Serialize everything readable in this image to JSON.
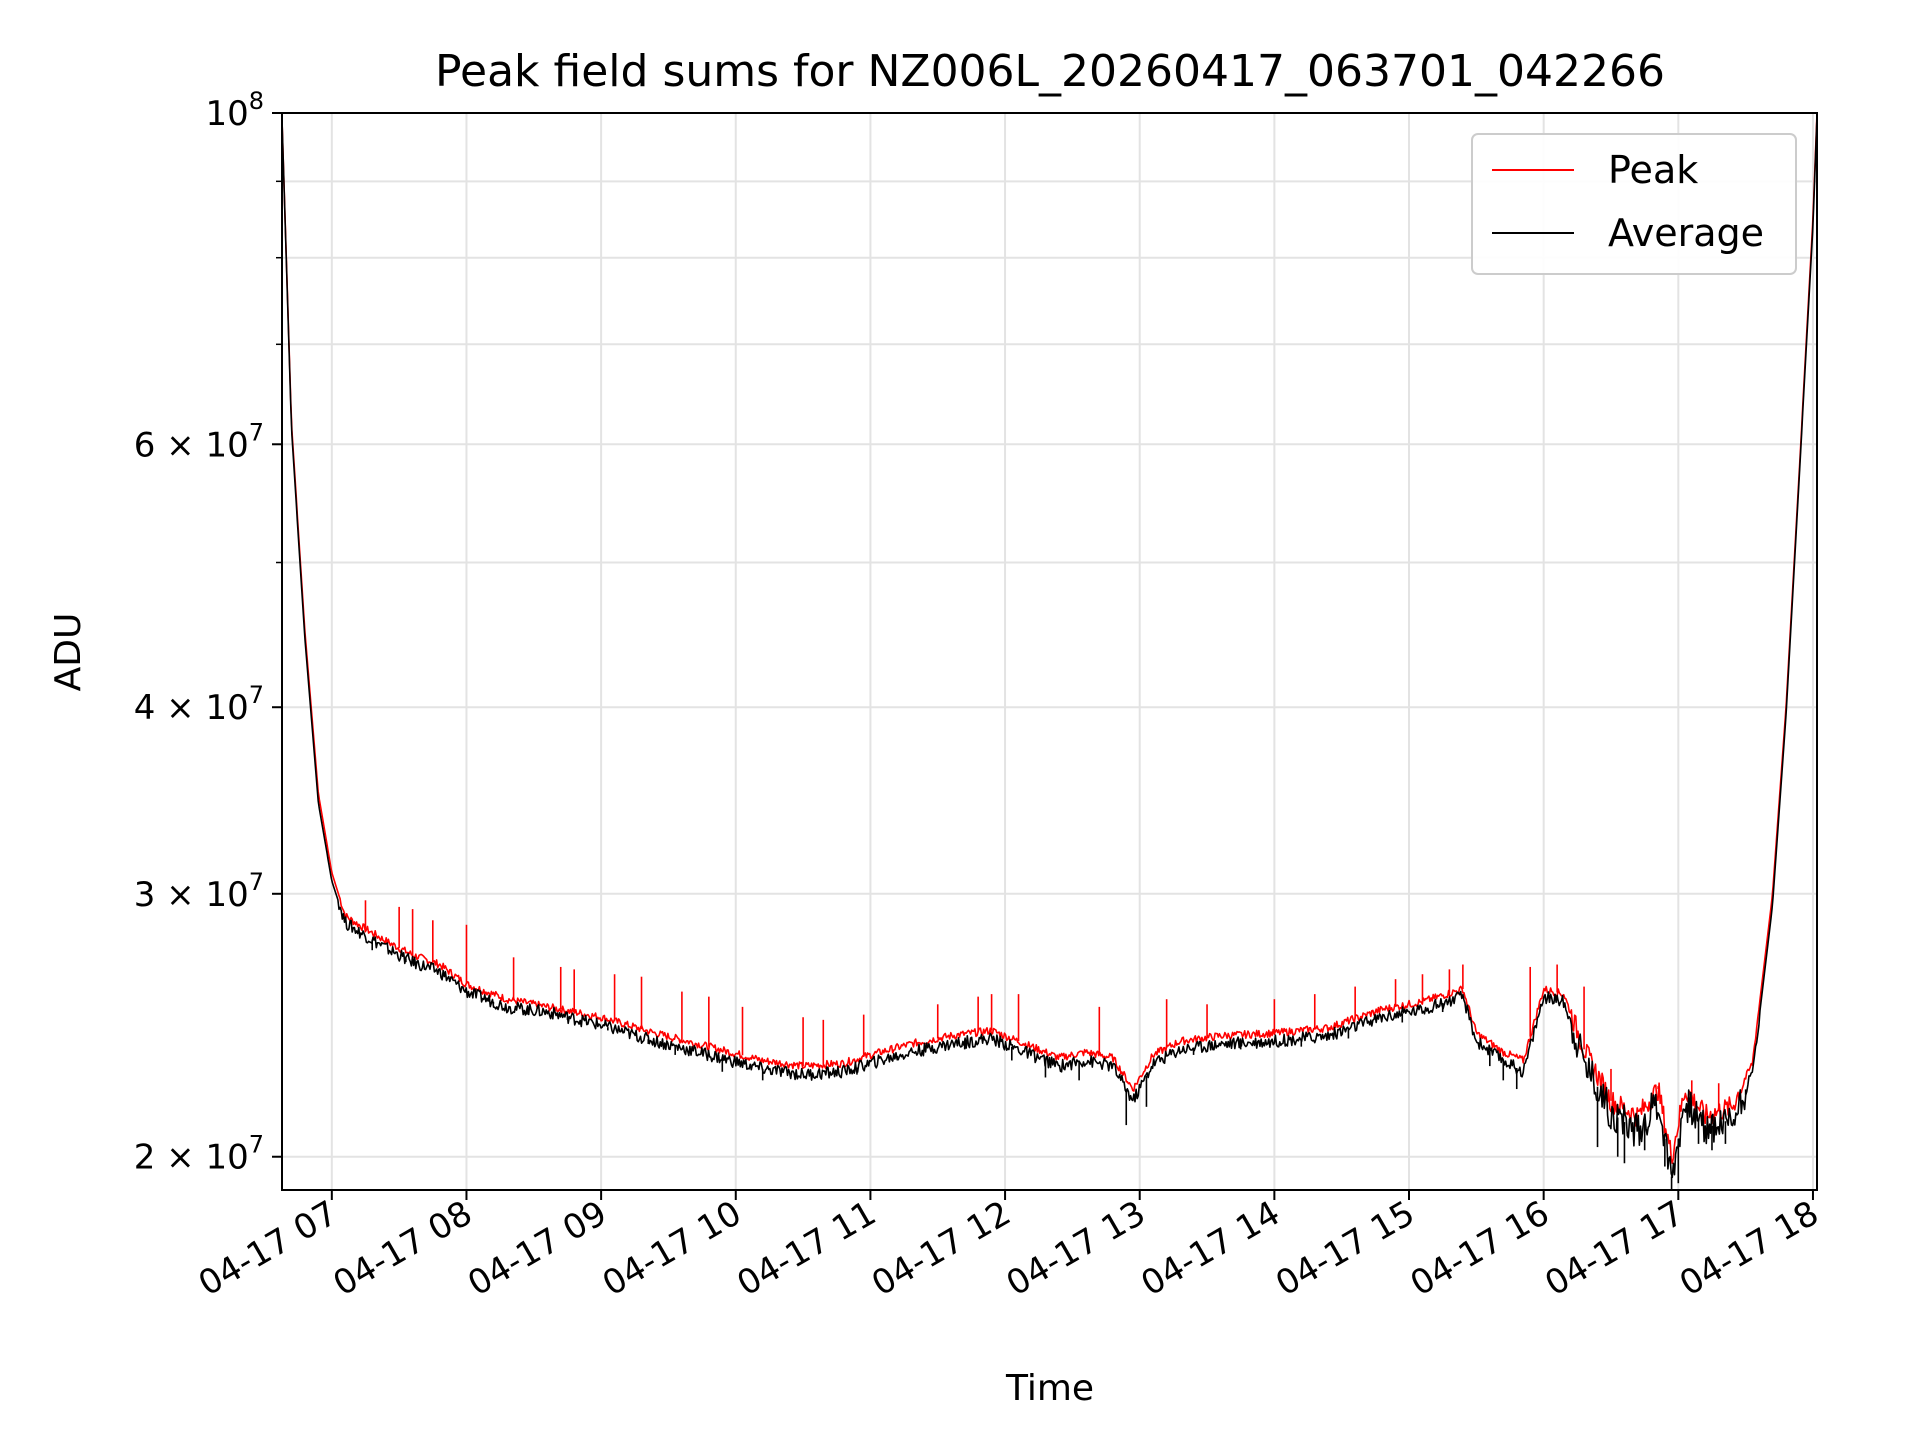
{
  "chart_data": {
    "type": "line",
    "title": "Peak field sums for NZ006L_20260417_063701_042266",
    "xlabel": "Time",
    "ylabel": "ADU",
    "yscale": "log",
    "ylim": [
      19000000,
      100000000
    ],
    "xlim": [
      6.63,
      18.03
    ],
    "grid": true,
    "legend_position": "top-right",
    "x_ticks": [
      {
        "value": 7,
        "label": "04-17 07"
      },
      {
        "value": 8,
        "label": "04-17 08"
      },
      {
        "value": 9,
        "label": "04-17 09"
      },
      {
        "value": 10,
        "label": "04-17 10"
      },
      {
        "value": 11,
        "label": "04-17 11"
      },
      {
        "value": 12,
        "label": "04-17 12"
      },
      {
        "value": 13,
        "label": "04-17 13"
      },
      {
        "value": 14,
        "label": "04-17 14"
      },
      {
        "value": 15,
        "label": "04-17 15"
      },
      {
        "value": 16,
        "label": "04-17 16"
      },
      {
        "value": 17,
        "label": "04-17 17"
      },
      {
        "value": 18,
        "label": "04-17 18"
      }
    ],
    "y_ticks": [
      {
        "value": 20000000,
        "mantissa": "2",
        "exponent": "7"
      },
      {
        "value": 30000000,
        "mantissa": "3",
        "exponent": "7"
      },
      {
        "value": 40000000,
        "mantissa": "4",
        "exponent": "7"
      },
      {
        "value": 60000000,
        "mantissa": "6",
        "exponent": "7"
      },
      {
        "value": 100000000,
        "mantissa": "",
        "exponent": "8"
      }
    ],
    "y_minor_ticks": [
      50000000,
      70000000,
      80000000,
      90000000
    ],
    "x_unit": "hours (UTC, 2026-04-17)",
    "series": [
      {
        "name": "Peak",
        "color": "#ff0000",
        "x": [
          6.63,
          6.7,
          6.8,
          6.9,
          7.0,
          7.1,
          7.2,
          7.4,
          7.6,
          7.8,
          8.0,
          8.3,
          8.6,
          9.0,
          9.4,
          9.8,
          10.2,
          10.5,
          10.8,
          11.0,
          11.3,
          11.6,
          11.9,
          12.2,
          12.4,
          12.6,
          12.8,
          12.95,
          13.1,
          13.3,
          13.6,
          14.0,
          14.4,
          14.8,
          15.1,
          15.4,
          15.5,
          15.7,
          15.85,
          16.0,
          16.15,
          16.3,
          16.5,
          16.7,
          16.85,
          16.95,
          17.05,
          17.2,
          17.4,
          17.55,
          17.7,
          17.8,
          17.9,
          18.0,
          18.03
        ],
        "y": [
          99000000,
          62000000,
          45000000,
          35000000,
          31000000,
          29000000,
          28600000,
          27900000,
          27300000,
          26900000,
          26100000,
          25500000,
          25200000,
          24800000,
          24200000,
          23700000,
          23200000,
          23000000,
          23100000,
          23400000,
          23800000,
          24100000,
          24300000,
          23700000,
          23300000,
          23500000,
          23300000,
          22200000,
          23400000,
          23900000,
          24100000,
          24200000,
          24400000,
          25100000,
          25400000,
          25900000,
          24200000,
          23500000,
          23200000,
          25900000,
          25700000,
          23600000,
          21800000,
          21300000,
          22200000,
          20000000,
          22200000,
          21300000,
          21600000,
          23100000,
          30000000,
          40000000,
          58000000,
          85000000,
          100000000
        ],
        "spikes": [
          [
            7.25,
            29700000
          ],
          [
            7.5,
            29400000
          ],
          [
            7.6,
            29300000
          ],
          [
            7.75,
            28800000
          ],
          [
            8.0,
            28600000
          ],
          [
            8.35,
            27200000
          ],
          [
            8.7,
            26800000
          ],
          [
            8.8,
            26700000
          ],
          [
            9.1,
            26500000
          ],
          [
            9.3,
            26400000
          ],
          [
            9.6,
            25800000
          ],
          [
            9.8,
            25600000
          ],
          [
            10.05,
            25200000
          ],
          [
            10.5,
            24800000
          ],
          [
            10.65,
            24700000
          ],
          [
            10.95,
            24900000
          ],
          [
            11.5,
            25300000
          ],
          [
            11.8,
            25600000
          ],
          [
            11.9,
            25700000
          ],
          [
            12.1,
            25700000
          ],
          [
            12.7,
            25200000
          ],
          [
            13.2,
            25500000
          ],
          [
            13.5,
            25300000
          ],
          [
            14.0,
            25500000
          ],
          [
            14.3,
            25700000
          ],
          [
            14.6,
            26000000
          ],
          [
            14.9,
            26300000
          ],
          [
            15.1,
            26500000
          ],
          [
            15.3,
            26700000
          ],
          [
            15.4,
            26900000
          ],
          [
            15.9,
            26800000
          ],
          [
            16.1,
            26900000
          ],
          [
            16.3,
            26000000
          ],
          [
            16.5,
            22900000
          ],
          [
            16.85,
            22300000
          ],
          [
            17.1,
            22500000
          ],
          [
            17.3,
            22400000
          ]
        ]
      },
      {
        "name": "Average",
        "color": "#000000",
        "x": [
          6.63,
          6.7,
          6.8,
          6.9,
          7.0,
          7.1,
          7.2,
          7.4,
          7.6,
          7.8,
          8.0,
          8.3,
          8.6,
          9.0,
          9.4,
          9.8,
          10.2,
          10.5,
          10.8,
          11.0,
          11.3,
          11.6,
          11.9,
          12.2,
          12.4,
          12.6,
          12.8,
          12.95,
          13.1,
          13.3,
          13.6,
          14.0,
          14.4,
          14.8,
          15.1,
          15.4,
          15.5,
          15.7,
          15.85,
          16.0,
          16.15,
          16.3,
          16.5,
          16.7,
          16.85,
          16.95,
          17.05,
          17.2,
          17.4,
          17.55,
          17.7,
          17.8,
          17.9,
          18.0,
          18.03
        ],
        "y": [
          99000000,
          61500000,
          44500000,
          34500000,
          30600000,
          28700000,
          28300000,
          27600000,
          27000000,
          26600000,
          25800000,
          25200000,
          25000000,
          24500000,
          23900000,
          23400000,
          22900000,
          22700000,
          22800000,
          23100000,
          23500000,
          23800000,
          24000000,
          23400000,
          23000000,
          23200000,
          23000000,
          21800000,
          23100000,
          23600000,
          23800000,
          23900000,
          24100000,
          24800000,
          25100000,
          25600000,
          23900000,
          23200000,
          22800000,
          25600000,
          25400000,
          23200000,
          21400000,
          20800000,
          21800000,
          19400000,
          21800000,
          20900000,
          21200000,
          22700000,
          29500000,
          39500000,
          57500000,
          84000000,
          99500000
        ],
        "dips": [
          [
            7.3,
            27500000
          ],
          [
            7.55,
            27000000
          ],
          [
            7.9,
            26200000
          ],
          [
            8.2,
            25300000
          ],
          [
            8.45,
            24900000
          ],
          [
            8.75,
            24700000
          ],
          [
            9.05,
            24300000
          ],
          [
            9.35,
            23800000
          ],
          [
            9.55,
            23400000
          ],
          [
            9.9,
            22800000
          ],
          [
            10.2,
            22500000
          ],
          [
            10.45,
            22600000
          ],
          [
            10.9,
            22700000
          ],
          [
            11.2,
            23200000
          ],
          [
            11.7,
            23600000
          ],
          [
            12.05,
            23200000
          ],
          [
            12.3,
            22600000
          ],
          [
            12.55,
            22500000
          ],
          [
            12.9,
            21000000
          ],
          [
            13.05,
            21600000
          ],
          [
            13.4,
            23400000
          ],
          [
            13.75,
            23600000
          ],
          [
            14.2,
            23700000
          ],
          [
            14.55,
            24000000
          ],
          [
            14.95,
            24600000
          ],
          [
            15.25,
            25000000
          ],
          [
            15.6,
            23000000
          ],
          [
            15.7,
            22500000
          ],
          [
            15.8,
            22200000
          ],
          [
            16.4,
            20300000
          ],
          [
            16.55,
            20000000
          ],
          [
            16.6,
            19800000
          ],
          [
            16.75,
            20200000
          ],
          [
            16.9,
            19700000
          ],
          [
            16.95,
            19000000
          ],
          [
            17.0,
            19200000
          ],
          [
            17.15,
            20400000
          ],
          [
            17.25,
            20200000
          ],
          [
            17.35,
            20400000
          ],
          [
            17.5,
            22000000
          ]
        ]
      }
    ]
  }
}
